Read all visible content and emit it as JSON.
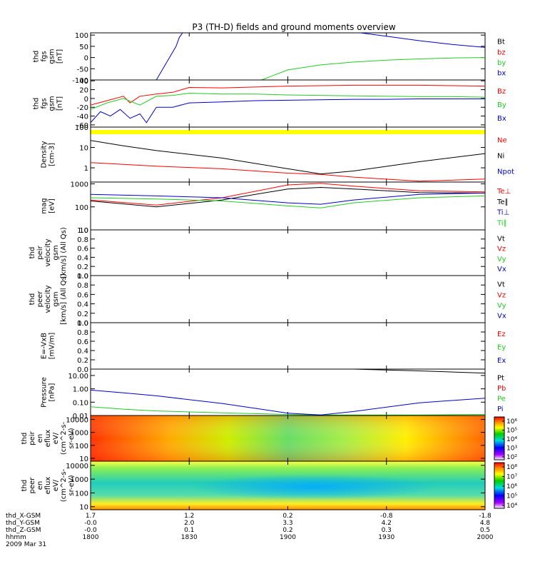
{
  "title": "P3 (TH-D) fields and ground moments overview",
  "date": "2009 Mar 31",
  "colors": {
    "black": "#000000",
    "red": "#ff0000",
    "green": "#22cc22",
    "blue": "#0000cc",
    "yellow": "#ffff00"
  },
  "x_axis": {
    "rows": [
      {
        "label": "thd_X-GSM",
        "values": [
          "1.7",
          "1.2",
          "0.2",
          "-0.8",
          "-1.8"
        ]
      },
      {
        "label": "thd_Y-GSM",
        "values": [
          "-0.0",
          "2.0",
          "3.3",
          "4.2",
          "4.8"
        ]
      },
      {
        "label": "thd_Z-GSM",
        "values": [
          "-0.0",
          "0.1",
          "0.2",
          "0.3",
          "0.5"
        ]
      },
      {
        "label": "hhmm",
        "values": [
          "1800",
          "1830",
          "1900",
          "1930",
          "2000"
        ]
      }
    ],
    "minutes": [
      0,
      30,
      60,
      90,
      120
    ]
  },
  "chart_data": [
    {
      "type": "line",
      "ylabel": [
        "thd",
        "fgs",
        "gsm",
        "[nT]"
      ],
      "ylim": [
        -100,
        110
      ],
      "ytick_values": [
        100,
        50,
        0,
        -50,
        -100
      ],
      "ytick_labels": [
        "100",
        "50",
        "0",
        "-50",
        "-100"
      ],
      "series": [
        {
          "name": "Bt",
          "color": "black",
          "values": []
        },
        {
          "name": "bz",
          "color": "red",
          "values": []
        },
        {
          "name": "by",
          "color": "green",
          "x": [
            52,
            60,
            70,
            80,
            90,
            100,
            110,
            120
          ],
          "values": [
            -100,
            -55,
            -33,
            -20,
            -12,
            -6,
            -2,
            0
          ]
        },
        {
          "name": "bx",
          "color": "blue",
          "x": [
            20,
            22,
            24,
            26,
            27,
            28
          ],
          "values": [
            -100,
            -50,
            0,
            50,
            90,
            110
          ]
        },
        {
          "name": "",
          "color": "blue",
          "x": [
            82,
            90,
            100,
            110,
            120
          ],
          "values": [
            110,
            95,
            75,
            58,
            45
          ]
        }
      ]
    },
    {
      "type": "line",
      "ylabel": [
        "thd",
        "fgs",
        "gsm",
        "[nT]"
      ],
      "ylim": [
        -65,
        42
      ],
      "ytick_values": [
        40,
        20,
        0,
        -20,
        -40,
        -60
      ],
      "ytick_labels": [
        "40",
        "20",
        "0",
        "-20",
        "-40",
        "-60"
      ],
      "series": [
        {
          "name": "Bz",
          "color": "red",
          "x": [
            0,
            5,
            10,
            12,
            15,
            20,
            25,
            30,
            40,
            50,
            60,
            70,
            80,
            90,
            100,
            110,
            120
          ],
          "values": [
            -15,
            -5,
            5,
            -10,
            5,
            10,
            14,
            25,
            24,
            26,
            28,
            29,
            30,
            30,
            30,
            29,
            28
          ]
        },
        {
          "name": "By",
          "color": "green",
          "x": [
            0,
            5,
            10,
            15,
            20,
            25,
            30,
            40,
            50,
            60,
            70,
            80,
            90,
            100,
            110,
            120
          ],
          "values": [
            -25,
            -10,
            0,
            -15,
            5,
            7,
            12,
            10,
            10,
            8,
            7,
            6,
            5,
            4,
            4,
            3
          ]
        },
        {
          "name": "Bx",
          "color": "blue",
          "x": [
            0,
            3,
            6,
            9,
            12,
            15,
            17,
            20,
            25,
            30,
            40,
            50,
            60,
            70,
            80,
            90,
            100,
            110,
            120
          ],
          "values": [
            -55,
            -30,
            -40,
            -25,
            -45,
            -35,
            -55,
            -20,
            -20,
            -10,
            -8,
            -5,
            -4,
            -3,
            -2,
            -2,
            -1,
            -1,
            -1
          ]
        }
      ]
    },
    {
      "type": "line",
      "ylabel": [
        "Density",
        "[cm-3]"
      ],
      "ylim_log": [
        0.2,
        100
      ],
      "ytick_values": [
        100,
        10,
        1
      ],
      "ytick_labels": [
        "100",
        "10",
        "1"
      ],
      "series": [
        {
          "name": "Ne",
          "color": "red",
          "x": [
            0,
            20,
            40,
            60,
            70,
            80,
            100,
            120
          ],
          "values": [
            1.8,
            1.2,
            0.9,
            0.55,
            0.48,
            0.35,
            0.22,
            0.28
          ]
        },
        {
          "name": "Ni",
          "color": "black",
          "x": [
            0,
            10,
            20,
            40,
            60,
            70,
            80,
            100,
            120
          ],
          "values": [
            22,
            12,
            7,
            3,
            0.9,
            0.5,
            0.7,
            2,
            5
          ]
        },
        {
          "name": "Npot",
          "color": "blue",
          "values": []
        }
      ]
    },
    {
      "type": "line",
      "ylabel": [
        "mag",
        "[eV]"
      ],
      "ylim_log": [
        10,
        1200
      ],
      "ytick_values": [
        1000,
        100,
        10
      ],
      "ytick_labels": [
        "1000",
        "100",
        "10"
      ],
      "series": [
        {
          "name": "Te⊥",
          "color": "red",
          "x": [
            0,
            20,
            40,
            60,
            70,
            80,
            100,
            120
          ],
          "values": [
            200,
            120,
            250,
            900,
            1050,
            800,
            500,
            450
          ]
        },
        {
          "name": "Te∥",
          "color": "black",
          "x": [
            0,
            20,
            40,
            60,
            70,
            80,
            100,
            120
          ],
          "values": [
            180,
            100,
            200,
            600,
            700,
            600,
            420,
            400
          ]
        },
        {
          "name": "Ti⊥",
          "color": "blue",
          "x": [
            0,
            20,
            40,
            60,
            70,
            80,
            100,
            120
          ],
          "values": [
            350,
            300,
            250,
            150,
            130,
            200,
            350,
            400
          ]
        },
        {
          "name": "Ti∥",
          "color": "green",
          "x": [
            0,
            20,
            40,
            60,
            70,
            80,
            100,
            120
          ],
          "values": [
            250,
            220,
            180,
            110,
            90,
            150,
            250,
            300
          ]
        }
      ]
    },
    {
      "type": "line",
      "ylabel": [
        "thd",
        "peir",
        "velocity",
        "gsm",
        "[km/s] (All Qs)"
      ],
      "ylim": [
        0,
        1
      ],
      "ytick_values": [
        1.0,
        0.8,
        0.6,
        0.4,
        0.2,
        0.0
      ],
      "ytick_labels": [
        "1.0",
        "0.8",
        "0.6",
        "0.4",
        "0.2",
        "0.0"
      ],
      "series": [
        {
          "name": "Vt",
          "color": "black",
          "values": []
        },
        {
          "name": "Vz",
          "color": "red",
          "values": []
        },
        {
          "name": "Vy",
          "color": "green",
          "values": []
        },
        {
          "name": "Vx",
          "color": "blue",
          "values": []
        }
      ]
    },
    {
      "type": "line",
      "ylabel": [
        "thd",
        "peer",
        "velocity",
        "gsm",
        "[km/s] (All Qs)"
      ],
      "ylim": [
        0,
        1
      ],
      "ytick_values": [
        1.0,
        0.8,
        0.6,
        0.4,
        0.2,
        0.0
      ],
      "ytick_labels": [
        "1.0",
        "0.8",
        "0.6",
        "0.4",
        "0.2",
        "0.0"
      ],
      "series": [
        {
          "name": "Vt",
          "color": "black",
          "values": []
        },
        {
          "name": "Vz",
          "color": "red",
          "values": []
        },
        {
          "name": "Vy",
          "color": "green",
          "values": []
        },
        {
          "name": "Vx",
          "color": "blue",
          "values": []
        }
      ]
    },
    {
      "type": "line",
      "ylabel": [
        "E=-VxB",
        "[mV/m]"
      ],
      "ylim": [
        0,
        1
      ],
      "ytick_values": [
        1.0,
        0.8,
        0.6,
        0.4,
        0.2,
        0.0
      ],
      "ytick_labels": [
        "1.0",
        "0.8",
        "0.6",
        "0.4",
        "0.2",
        "0.0"
      ],
      "series": [
        {
          "name": "Ez",
          "color": "red",
          "values": []
        },
        {
          "name": "Ey",
          "color": "green",
          "values": []
        },
        {
          "name": "Ex",
          "color": "blue",
          "values": []
        }
      ]
    },
    {
      "type": "line",
      "ylabel": [
        "Pressure",
        "[nPa]"
      ],
      "ylim_log": [
        0.01,
        30
      ],
      "ytick_values": [
        10,
        1,
        0.1,
        0.01
      ],
      "ytick_labels": [
        "10.00",
        "1.00",
        "0.10",
        "0.01"
      ],
      "series": [
        {
          "name": "Pt",
          "color": "black",
          "x": [
            80,
            100,
            120
          ],
          "values": [
            30,
            22,
            15
          ]
        },
        {
          "name": "Pb",
          "color": "red",
          "values": []
        },
        {
          "name": "Pe",
          "color": "green",
          "x": [
            0,
            10,
            20,
            40,
            60,
            70,
            80,
            100,
            120
          ],
          "values": [
            0.045,
            0.03,
            0.022,
            0.016,
            0.012,
            0.011,
            0.011,
            0.011,
            0.012
          ]
        },
        {
          "name": "Pi",
          "color": "blue",
          "x": [
            0,
            10,
            20,
            40,
            60,
            70,
            80,
            100,
            120
          ],
          "values": [
            0.8,
            0.5,
            0.3,
            0.08,
            0.015,
            0.011,
            0.02,
            0.09,
            0.2
          ]
        }
      ]
    },
    {
      "type": "heatmap",
      "ylabel": [
        "thd",
        "peir",
        "en",
        "eflux",
        "eV/",
        "(cm^2-s-",
        "sr-eV)"
      ],
      "ylim_log": [
        6,
        20000
      ],
      "ytick_values": [
        10000,
        1000,
        100,
        10
      ],
      "ytick_labels": [
        "10000",
        "1000",
        "100",
        "10"
      ],
      "colorbar": {
        "tick_labels": [
          "10⁶",
          "10⁵",
          "10⁴",
          "10³",
          "10²"
        ]
      }
    },
    {
      "type": "heatmap",
      "ylabel": [
        "thd",
        "peer",
        "en",
        "eflux",
        "eV/",
        "(cm^2-s-",
        "sr-eV)"
      ],
      "ylim_log": [
        6,
        20000
      ],
      "ytick_values": [
        10000,
        1000,
        100,
        10
      ],
      "ytick_labels": [
        "10000",
        "1000",
        "100",
        "10"
      ],
      "colorbar": {
        "tick_labels": [
          "10⁸",
          "10⁷",
          "10⁶",
          "10⁵",
          "10⁴"
        ]
      }
    }
  ]
}
